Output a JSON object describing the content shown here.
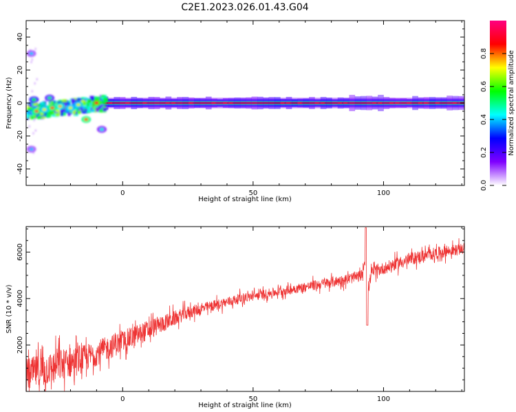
{
  "figure": {
    "title": "C2E1.2023.026.01.43.G04"
  },
  "colors": {
    "series_line": "#ee3333",
    "colormap": [
      "#ffffff",
      "#7f00ff",
      "#0000ff",
      "#00ffff",
      "#00ff00",
      "#ffff00",
      "#ff0000",
      "#ff0080"
    ]
  },
  "chart_data": [
    {
      "type": "heatmap",
      "xlabel": "Height of straight line (km)",
      "ylabel": "Frequency (Hz)",
      "xlim": [
        -37,
        131
      ],
      "ylim": [
        -50,
        50
      ],
      "xticks": [
        0,
        50,
        100
      ],
      "yticks": [
        -40,
        -20,
        0,
        20,
        40
      ],
      "colorbar": {
        "label": "Normalized spectral amplitude",
        "range": [
          0,
          1
        ],
        "ticks": [
          "0.0",
          "0.2",
          "0.4",
          "0.6",
          "0.8"
        ]
      },
      "band": {
        "frequency_hz": 0,
        "width_hz": 2
      },
      "scatter_blobs": [
        {
          "x": -33,
          "y": -5,
          "v": 0.5
        },
        {
          "x": -30,
          "y": -4,
          "v": 0.4
        },
        {
          "x": -27,
          "y": -3,
          "v": 0.5
        },
        {
          "x": -24,
          "y": -2,
          "v": 0.45
        },
        {
          "x": -20,
          "y": -3,
          "v": 0.4
        },
        {
          "x": -17,
          "y": -1,
          "v": 0.4
        },
        {
          "x": -14,
          "y": -10,
          "v": 0.5
        },
        {
          "x": -10,
          "y": 0,
          "v": 0.6
        },
        {
          "x": -34,
          "y": 2,
          "v": 0.25
        },
        {
          "x": -28,
          "y": 3,
          "v": 0.2
        },
        {
          "x": -8,
          "y": -16,
          "v": 0.15
        },
        {
          "x": -35,
          "y": -28,
          "v": 0.1
        },
        {
          "x": -35,
          "y": 30,
          "v": 0.1
        }
      ]
    },
    {
      "type": "line",
      "xlabel": "Height of straight line (km)",
      "ylabel": "SNR (10 * v/v)",
      "xlim": [
        -37,
        131
      ],
      "ylim": [
        0,
        7100
      ],
      "xticks": [
        0,
        50,
        100
      ],
      "yticks": [
        2000,
        4000,
        6000
      ],
      "trend": [
        [
          -37,
          700
        ],
        [
          -25,
          1100
        ],
        [
          -15,
          1400
        ],
        [
          -5,
          1900
        ],
        [
          5,
          2400
        ],
        [
          15,
          2900
        ],
        [
          25,
          3400
        ],
        [
          35,
          3700
        ],
        [
          45,
          4000
        ],
        [
          55,
          4200
        ],
        [
          65,
          4400
        ],
        [
          75,
          4600
        ],
        [
          85,
          4800
        ],
        [
          92,
          5000
        ],
        [
          100,
          5300
        ],
        [
          110,
          5700
        ],
        [
          120,
          5950
        ],
        [
          131,
          6150
        ]
      ],
      "noise": [
        [
          -37,
          900
        ],
        [
          -20,
          850
        ],
        [
          -12,
          700
        ],
        [
          0,
          600
        ],
        [
          10,
          550
        ],
        [
          20,
          400
        ],
        [
          30,
          300
        ],
        [
          60,
          250
        ],
        [
          90,
          300
        ],
        [
          110,
          350
        ],
        [
          131,
          300
        ]
      ],
      "events": [
        {
          "x": 93.5,
          "peak": 7050,
          "trough": 2850
        }
      ]
    }
  ]
}
